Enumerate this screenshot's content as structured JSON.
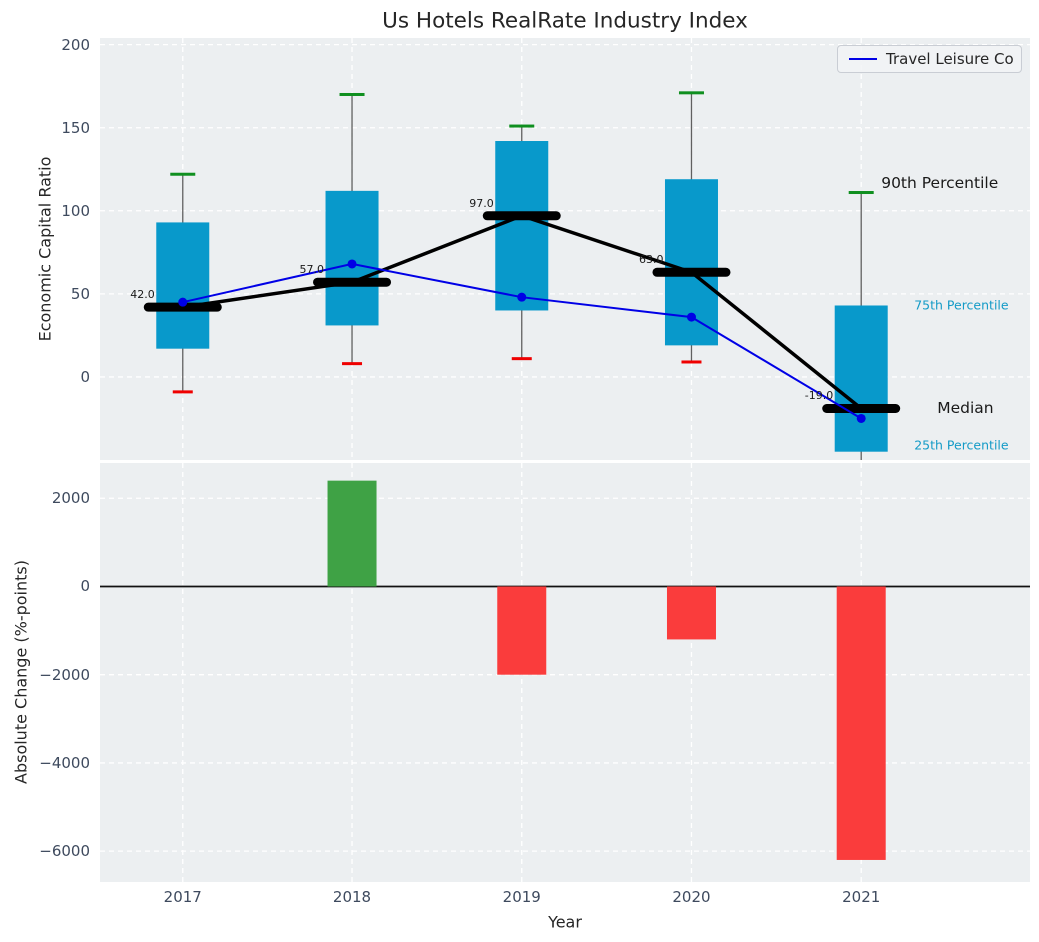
{
  "title": "Us Hotels RealRate Industry Index",
  "legend": {
    "label": "Travel Leisure Co"
  },
  "colors": {
    "panel_bg": "#eceff1",
    "grid": "#ffffff",
    "box_fill": "#0899cb",
    "whisker": "#606060",
    "cap_90th": "#0f8f1f",
    "cap_10th": "#ef0000",
    "median_marker": "#000000",
    "trend_line": "#000000",
    "company_line": "#0000e6",
    "bar_positive": "#3fa245",
    "bar_negative": "#fa3c3c",
    "zero_line": "#111111",
    "tick_text": "#3e4a5e",
    "percentile_label": "#149bc7"
  },
  "chart_data": [
    {
      "type": "box",
      "title": "Us Hotels RealRate Industry Index",
      "ylabel": "Economic Capital Ratio",
      "ylim": [
        -50,
        204
      ],
      "grid": true,
      "legend_position": "upper right",
      "yticks": [
        {
          "v": 200,
          "label": "200"
        },
        {
          "v": 150,
          "label": "150"
        },
        {
          "v": 100,
          "label": "100"
        },
        {
          "v": 50,
          "label": "50"
        },
        {
          "v": 0,
          "label": "0"
        }
      ],
      "categories": [
        "2017",
        "2018",
        "2019",
        "2020",
        "2021"
      ],
      "boxes": [
        {
          "year": "2017",
          "p10": -9,
          "p25": 17,
          "median": 42,
          "p75": 93,
          "p90": 122
        },
        {
          "year": "2018",
          "p10": 8,
          "p25": 31,
          "median": 57,
          "p75": 112,
          "p90": 170
        },
        {
          "year": "2019",
          "p10": 11,
          "p25": 40,
          "median": 97,
          "p75": 142,
          "p90": 151
        },
        {
          "year": "2020",
          "p10": 9,
          "p25": 19,
          "median": 63,
          "p75": 119,
          "p90": 171
        },
        {
          "year": "2021",
          "p10": null,
          "p25": -45,
          "median": -19,
          "p75": 43,
          "p90": 111
        }
      ],
      "median_values": [
        42,
        57,
        97,
        63,
        -19
      ],
      "median_labels": [
        "42.0",
        "57.0",
        "97.0",
        "63.0",
        "-19.0"
      ],
      "series": [
        {
          "name": "Travel Leisure Co",
          "values": [
            45,
            68,
            48,
            36,
            -25
          ]
        }
      ],
      "annotations": [
        {
          "text": "90th Percentile",
          "at": 117,
          "style": "big",
          "dx": 20
        },
        {
          "text": "75th Percentile",
          "at": 43,
          "style": "small",
          "dx": 53
        },
        {
          "text": "Median",
          "at": -19,
          "style": "big",
          "dx": 76
        },
        {
          "text": "25th Percentile",
          "at": -41,
          "style": "small",
          "dx": 53
        }
      ]
    },
    {
      "type": "bar",
      "ylabel": "Absolute Change (%-points)",
      "xlabel": "Year",
      "ylim": [
        -6700,
        2800
      ],
      "grid": true,
      "yticks": [
        {
          "v": 2000,
          "label": "2000"
        },
        {
          "v": 0,
          "label": "0"
        },
        {
          "v": -2000,
          "label": "−2000"
        },
        {
          "v": -4000,
          "label": "−4000"
        },
        {
          "v": -6000,
          "label": "−6000"
        }
      ],
      "categories": [
        "2017",
        "2018",
        "2019",
        "2020",
        "2021"
      ],
      "values": [
        0,
        2400,
        -2000,
        -1200,
        -6200
      ]
    }
  ]
}
